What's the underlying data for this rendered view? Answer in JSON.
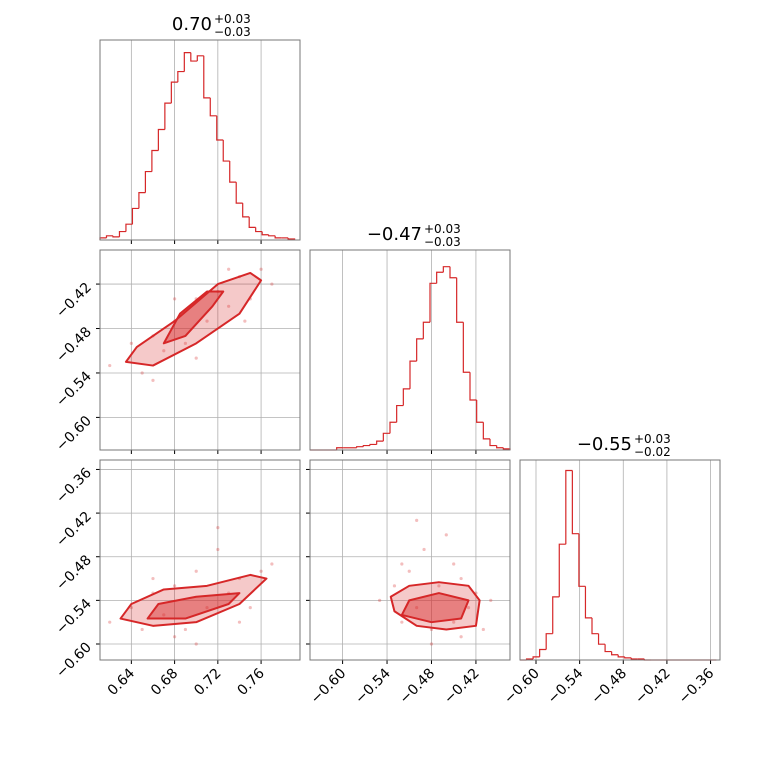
{
  "chart_data": [
    {
      "type": "histogram",
      "title": "0.70",
      "title_upper": "+0.03",
      "title_lower": "−0.03",
      "color": "#d62728",
      "bins": [
        0.611,
        0.617,
        0.623,
        0.629,
        0.635,
        0.641,
        0.647,
        0.653,
        0.659,
        0.665,
        0.671,
        0.677,
        0.683,
        0.689,
        0.695,
        0.701,
        0.707,
        0.713,
        0.719,
        0.725,
        0.731,
        0.737,
        0.743,
        0.749,
        0.755,
        0.761,
        0.767,
        0.773,
        0.779,
        0.785,
        0.791
      ],
      "counts": [
        2,
        4,
        3,
        8,
        15,
        30,
        45,
        65,
        85,
        105,
        130,
        150,
        160,
        178,
        170,
        175,
        135,
        118,
        95,
        75,
        55,
        35,
        22,
        12,
        8,
        5,
        4,
        2,
        2,
        1
      ],
      "xlim": [
        0.611,
        0.796
      ],
      "ylim": [
        0,
        190
      ],
      "xticks": [
        0.64,
        0.68,
        0.72,
        0.76
      ],
      "grid": true
    },
    {
      "type": "scatter",
      "color": "#d62728",
      "x": [
        0.62,
        0.64,
        0.65,
        0.66,
        0.67,
        0.68,
        0.69,
        0.7,
        0.71,
        0.72,
        0.73,
        0.74,
        0.75,
        0.76,
        0.77,
        0.66,
        0.7,
        0.73,
        0.68,
        0.745
      ],
      "y": [
        -0.53,
        -0.5,
        -0.54,
        -0.49,
        -0.51,
        -0.47,
        -0.5,
        -0.44,
        -0.47,
        -0.43,
        -0.45,
        -0.41,
        -0.44,
        -0.4,
        -0.42,
        -0.55,
        -0.52,
        -0.4,
        -0.44,
        -0.47
      ],
      "contours": [
        {
          "x": [
            0.635,
            0.66,
            0.7,
            0.74,
            0.76,
            0.75,
            0.72,
            0.68,
            0.645
          ],
          "y": [
            -0.525,
            -0.53,
            -0.5,
            -0.46,
            -0.415,
            -0.405,
            -0.42,
            -0.47,
            -0.505
          ]
        },
        {
          "x": [
            0.67,
            0.69,
            0.715,
            0.725,
            0.71,
            0.685
          ],
          "y": [
            -0.5,
            -0.49,
            -0.45,
            -0.43,
            -0.43,
            -0.46
          ]
        }
      ],
      "xlim": [
        0.611,
        0.796
      ],
      "ylim": [
        -0.644,
        -0.374
      ],
      "xticks": [
        0.64,
        0.68,
        0.72,
        0.76
      ],
      "yticks": [
        {
          "value": -0.42,
          "label": "−0.42"
        },
        {
          "value": -0.48,
          "label": "−0.48"
        },
        {
          "value": -0.54,
          "label": "−0.54"
        },
        {
          "value": -0.6,
          "label": "−0.60"
        }
      ],
      "grid": true
    },
    {
      "type": "histogram",
      "title": "−0.47",
      "title_upper": "+0.03",
      "title_lower": "−0.03",
      "color": "#d62728",
      "bins": [
        -0.644,
        -0.635,
        -0.626,
        -0.617,
        -0.608,
        -0.599,
        -0.59,
        -0.581,
        -0.572,
        -0.563,
        -0.554,
        -0.545,
        -0.536,
        -0.527,
        -0.518,
        -0.509,
        -0.5,
        -0.491,
        -0.482,
        -0.473,
        -0.464,
        -0.455,
        -0.446,
        -0.437,
        -0.428,
        -0.419,
        -0.41,
        -0.401,
        -0.392,
        -0.383,
        -0.374
      ],
      "counts": [
        0,
        0,
        0,
        0,
        2,
        2,
        2,
        3,
        4,
        5,
        8,
        15,
        25,
        40,
        55,
        80,
        100,
        115,
        150,
        160,
        165,
        155,
        115,
        70,
        45,
        25,
        10,
        4,
        2,
        1
      ],
      "xlim": [
        -0.644,
        -0.374
      ],
      "ylim": [
        0,
        180
      ],
      "xticks": [
        -0.6,
        -0.54,
        -0.48,
        -0.42
      ],
      "grid": true
    },
    {
      "type": "scatter",
      "color": "#d62728",
      "x": [
        0.62,
        0.64,
        0.65,
        0.66,
        0.67,
        0.68,
        0.69,
        0.7,
        0.71,
        0.72,
        0.73,
        0.74,
        0.75,
        0.76,
        0.77,
        0.7,
        0.72,
        0.68,
        0.66,
        0.74
      ],
      "y": [
        -0.57,
        -0.55,
        -0.58,
        -0.53,
        -0.56,
        -0.52,
        -0.58,
        -0.5,
        -0.55,
        -0.44,
        -0.53,
        -0.51,
        -0.55,
        -0.5,
        -0.49,
        -0.6,
        -0.47,
        -0.59,
        -0.51,
        -0.57
      ],
      "contours": [
        {
          "x": [
            0.63,
            0.66,
            0.7,
            0.74,
            0.765,
            0.75,
            0.71,
            0.67,
            0.64
          ],
          "y": [
            -0.565,
            -0.575,
            -0.57,
            -0.545,
            -0.51,
            -0.505,
            -0.52,
            -0.525,
            -0.545
          ]
        },
        {
          "x": [
            0.655,
            0.69,
            0.73,
            0.74,
            0.7,
            0.665
          ],
          "y": [
            -0.565,
            -0.565,
            -0.545,
            -0.53,
            -0.535,
            -0.545
          ]
        }
      ],
      "xlim": [
        0.611,
        0.796
      ],
      "ylim": [
        -0.622,
        -0.347
      ],
      "xticks": [
        0.64,
        0.68,
        0.72,
        0.76
      ],
      "yticks": [
        {
          "value": -0.36,
          "label": "−0.36"
        },
        {
          "value": -0.42,
          "label": "−0.42"
        },
        {
          "value": -0.48,
          "label": "−0.48"
        },
        {
          "value": -0.54,
          "label": "−0.54"
        },
        {
          "value": -0.6,
          "label": "−0.60"
        }
      ],
      "grid": true
    },
    {
      "type": "scatter",
      "color": "#d62728",
      "x": [
        -0.55,
        -0.53,
        -0.52,
        -0.51,
        -0.5,
        -0.49,
        -0.48,
        -0.47,
        -0.46,
        -0.45,
        -0.44,
        -0.43,
        -0.42,
        -0.41,
        -0.4,
        -0.5,
        -0.45,
        -0.48,
        -0.44,
        -0.52
      ],
      "y": [
        -0.54,
        -0.52,
        -0.57,
        -0.5,
        -0.55,
        -0.47,
        -0.58,
        -0.52,
        -0.45,
        -0.57,
        -0.51,
        -0.55,
        -0.53,
        -0.58,
        -0.54,
        -0.43,
        -0.49,
        -0.6,
        -0.59,
        -0.49
      ],
      "contours": [
        {
          "x": [
            -0.53,
            -0.5,
            -0.46,
            -0.42,
            -0.415,
            -0.43,
            -0.47,
            -0.51,
            -0.535
          ],
          "y": [
            -0.555,
            -0.575,
            -0.58,
            -0.575,
            -0.54,
            -0.52,
            -0.515,
            -0.52,
            -0.535
          ]
        },
        {
          "x": [
            -0.52,
            -0.48,
            -0.44,
            -0.43,
            -0.47,
            -0.51
          ],
          "y": [
            -0.56,
            -0.57,
            -0.565,
            -0.54,
            -0.53,
            -0.54
          ]
        }
      ],
      "xlim": [
        -0.644,
        -0.374
      ],
      "ylim": [
        -0.622,
        -0.347
      ],
      "xticks": [
        {
          "value": -0.6,
          "label": "−0.60"
        },
        {
          "value": -0.54,
          "label": "−0.54"
        },
        {
          "value": -0.48,
          "label": "−0.48"
        },
        {
          "value": -0.42,
          "label": "−0.42"
        }
      ],
      "yticks": [
        -0.36,
        -0.42,
        -0.48,
        -0.54,
        -0.6
      ],
      "grid": true
    },
    {
      "type": "histogram",
      "title": "−0.55",
      "title_upper": "+0.03",
      "title_lower": "−0.02",
      "color": "#d62728",
      "bins": [
        -0.622,
        -0.613,
        -0.604,
        -0.595,
        -0.586,
        -0.577,
        -0.568,
        -0.559,
        -0.55,
        -0.541,
        -0.532,
        -0.523,
        -0.514,
        -0.505,
        -0.496,
        -0.487,
        -0.478,
        -0.469,
        -0.46,
        -0.451,
        -0.442,
        -0.433,
        -0.424,
        -0.415,
        -0.406,
        -0.397,
        -0.388,
        -0.379,
        -0.37,
        -0.361,
        -0.352
      ],
      "counts": [
        0,
        1,
        3,
        10,
        25,
        60,
        110,
        180,
        120,
        70,
        40,
        25,
        15,
        8,
        5,
        3,
        2,
        1,
        1,
        0,
        0,
        0,
        0,
        0,
        0,
        0,
        0,
        0,
        0,
        0
      ],
      "xlim": [
        -0.622,
        -0.347
      ],
      "ylim": [
        0,
        190
      ],
      "xticks": [
        {
          "value": -0.6,
          "label": "−0.60"
        },
        {
          "value": -0.54,
          "label": "−0.54"
        },
        {
          "value": -0.48,
          "label": "−0.48"
        },
        {
          "value": -0.42,
          "label": "−0.42"
        },
        {
          "value": -0.36,
          "label": "−0.36"
        }
      ],
      "grid": true
    }
  ]
}
